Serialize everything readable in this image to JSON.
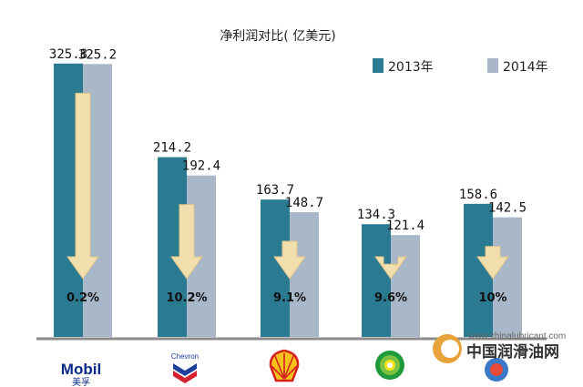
{
  "chart_data": {
    "type": "bar",
    "title": "净利润对比( 亿美元)",
    "categories": [
      "Mobil",
      "Chevron",
      "Shell",
      "BP",
      "Total"
    ],
    "series": [
      {
        "name": "2013年",
        "values": [
          325.8,
          214.2,
          163.7,
          134.3,
          158.6
        ],
        "color": "#2a7b91"
      },
      {
        "name": "2014年",
        "values": [
          325.2,
          192.4,
          148.7,
          121.4,
          142.5
        ],
        "color": "#a9b8c8"
      }
    ],
    "value_labels": [
      [
        "325.8",
        "325.2"
      ],
      [
        "214.2",
        "192.4"
      ],
      [
        "163.7",
        "148.7"
      ],
      [
        "134.3",
        "121.4"
      ],
      [
        "158.6",
        "142.5"
      ]
    ],
    "decline_labels": [
      "0.2%",
      "10.2%",
      "9.1%",
      "9.6%",
      "10%"
    ],
    "arrow_color": "#f2dfae",
    "legend_position": "top-right",
    "ylim": [
      0,
      350
    ],
    "grid": false
  },
  "logos": {
    "mobil": {
      "name": "Mobil",
      "sub": "美孚"
    },
    "chevron": {
      "name": "Chevron"
    }
  },
  "watermark": {
    "url": "www.chinalubricant.com",
    "name": "中国润滑油网"
  }
}
